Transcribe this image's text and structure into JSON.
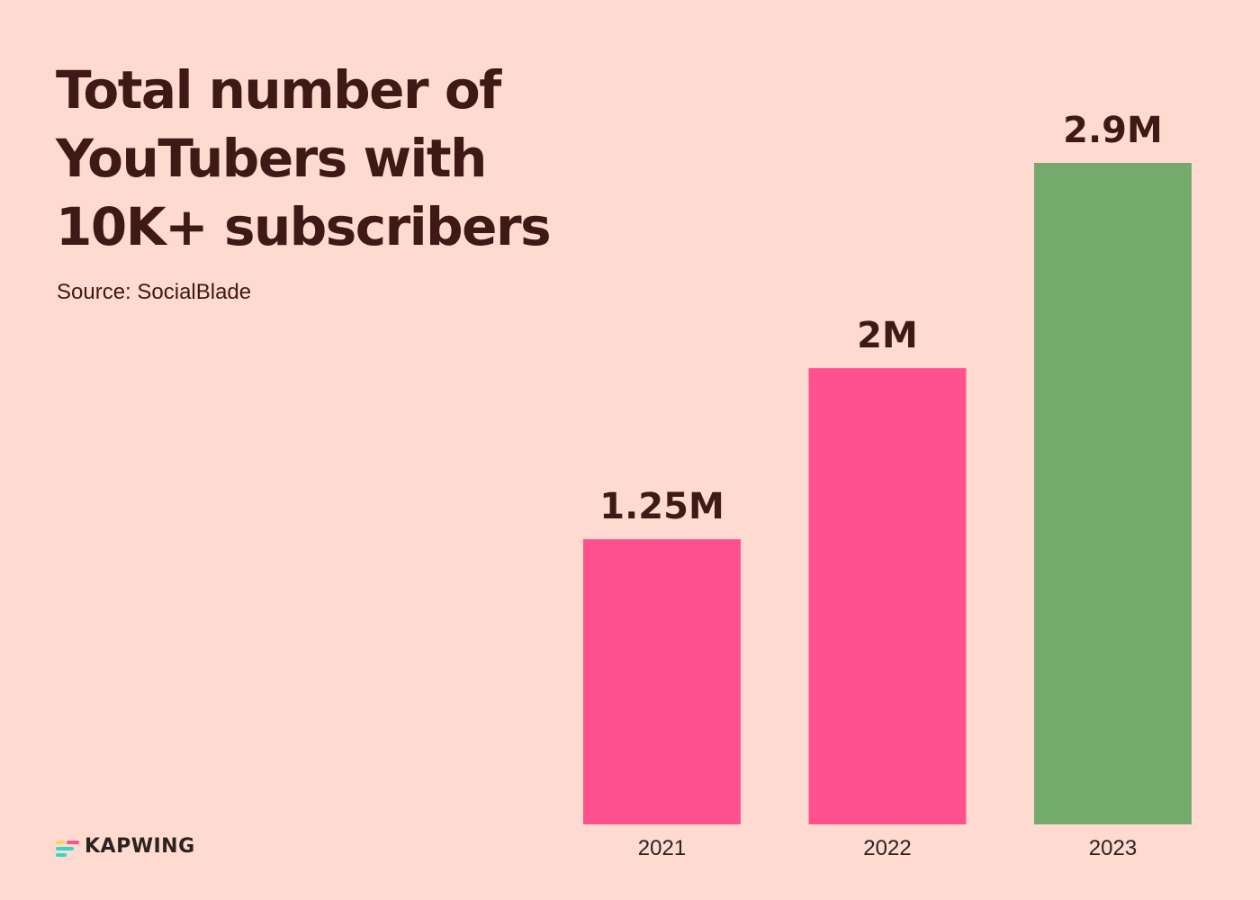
{
  "chart_data": {
    "type": "bar",
    "title": [
      "Total number of",
      "YouTubers with",
      "10K+ subscribers"
    ],
    "subtitle": "Source: SocialBlade",
    "xlabel": "",
    "ylabel": "",
    "categories": [
      "2021",
      "2022",
      "2023"
    ],
    "values": [
      1.25,
      2,
      2.9
    ],
    "value_labels": [
      "1.25M",
      "2M",
      "2.9M"
    ],
    "bar_colors": [
      "#FF518E",
      "#FF518E",
      "#74AA6C"
    ],
    "ylim": [
      0,
      2.9
    ],
    "grid": false,
    "legend": "none"
  },
  "brand": {
    "name": "KAPWING",
    "mark_colors": [
      "#FFD15A",
      "#2ED9C3",
      "#FF518E"
    ]
  },
  "colors": {
    "background": "#FFDAD1",
    "text": "#3E1A17"
  }
}
